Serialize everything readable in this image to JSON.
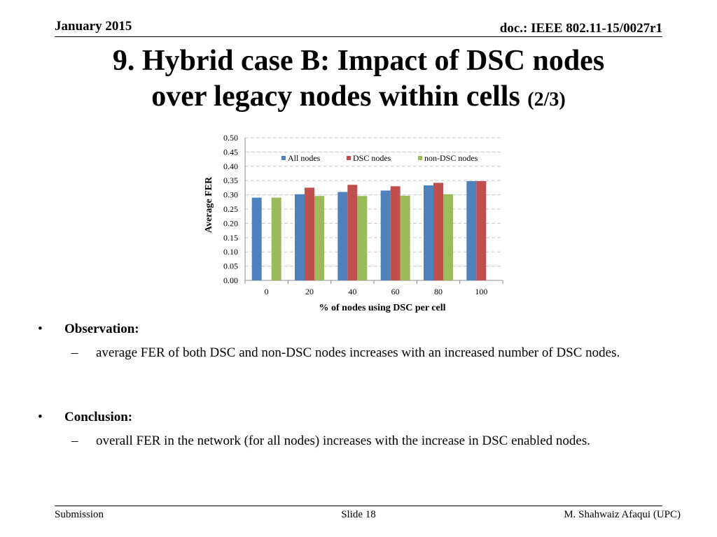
{
  "header": {
    "date": "January 2015",
    "doc": "doc.: IEEE 802.11-15/0027r1"
  },
  "title": {
    "line1": "9. Hybrid case B: Impact of DSC nodes",
    "line2": "over legacy nodes within cells",
    "suffix": "(2/3)"
  },
  "chart_data": {
    "type": "bar",
    "categories": [
      "0",
      "20",
      "40",
      "60",
      "80",
      "100"
    ],
    "series": [
      {
        "name": "All nodes",
        "color": "#4F81BD",
        "values": [
          0.29,
          0.302,
          0.31,
          0.315,
          0.333,
          0.348
        ]
      },
      {
        "name": "DSC nodes",
        "color": "#C0504D",
        "values": [
          null,
          0.325,
          0.335,
          0.33,
          0.342,
          0.348
        ]
      },
      {
        "name": "non-DSC nodes",
        "color": "#9BBB59",
        "values": [
          0.29,
          0.296,
          0.296,
          0.297,
          0.302,
          null
        ]
      }
    ],
    "xlabel": "% of nodes using DSC per cell",
    "ylabel": "Average FER",
    "ylim": [
      0,
      0.5
    ],
    "yticks": [
      "0.00",
      "0.05",
      "0.10",
      "0.15",
      "0.20",
      "0.25",
      "0.30",
      "0.35",
      "0.40",
      "0.45",
      "0.50"
    ],
    "grid": true,
    "legend": "top"
  },
  "observation": {
    "label": "Observation:",
    "text": "average FER of both DSC and non-DSC nodes increases with an increased number of DSC nodes."
  },
  "conclusion": {
    "label": "Conclusion:",
    "text": "overall FER in the network (for all nodes) increases with the increase in DSC enabled nodes."
  },
  "footer": {
    "left": "Submission",
    "center": "Slide 18",
    "right": "M. Shahwaiz Afaqui (UPC)"
  },
  "bullet_glyph": "•",
  "dash_glyph": "–"
}
